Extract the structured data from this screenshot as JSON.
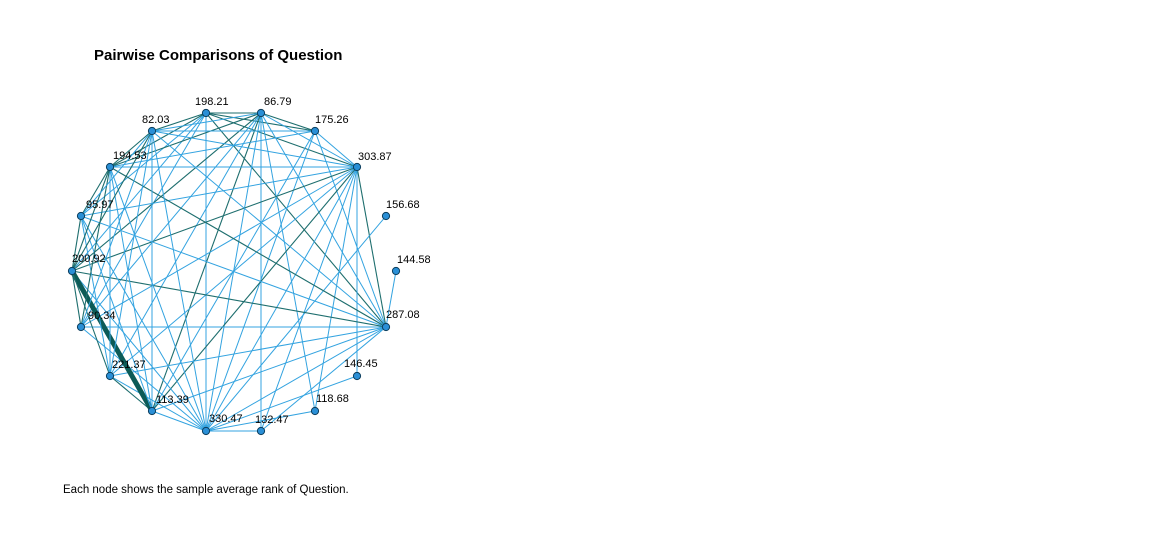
{
  "title": "Pairwise Comparisons of Question",
  "footnote": "Each node shows the sample average rank of Question.",
  "colors": {
    "background": "#ffffff",
    "node_fill": "#2a8fd6",
    "node_stroke": "#0b3d5c",
    "edge_light": "#33a3e0",
    "edge_dark": "#1e6e6e",
    "edge_highlight": "#0c5b57"
  },
  "nodes": [
    {
      "id": "n1",
      "label": "198.21"
    },
    {
      "id": "n2",
      "label": "86.79"
    },
    {
      "id": "n3",
      "label": "175.26"
    },
    {
      "id": "n4",
      "label": "303.87"
    },
    {
      "id": "n5",
      "label": "156.68"
    },
    {
      "id": "n6",
      "label": "144.58"
    },
    {
      "id": "n7",
      "label": "287.08"
    },
    {
      "id": "n8",
      "label": "146.45"
    },
    {
      "id": "n9",
      "label": "118.68"
    },
    {
      "id": "n10",
      "label": "132.47"
    },
    {
      "id": "n11",
      "label": "330.47"
    },
    {
      "id": "n12",
      "label": "113.39"
    },
    {
      "id": "n13",
      "label": "221.37"
    },
    {
      "id": "n14",
      "label": "90.34"
    },
    {
      "id": "n15",
      "label": "200.92"
    },
    {
      "id": "n16",
      "label": "95.97"
    },
    {
      "id": "n17",
      "label": "194.53"
    },
    {
      "id": "n18",
      "label": "82.03"
    }
  ],
  "edges": [
    [
      "n1",
      "n2",
      "dark"
    ],
    [
      "n1",
      "n3",
      "dark"
    ],
    [
      "n1",
      "n4",
      "dark"
    ],
    [
      "n1",
      "n7",
      "dark"
    ],
    [
      "n1",
      "n11",
      "light"
    ],
    [
      "n1",
      "n14",
      "light"
    ],
    [
      "n1",
      "n15",
      "light"
    ],
    [
      "n1",
      "n16",
      "light"
    ],
    [
      "n1",
      "n17",
      "dark"
    ],
    [
      "n1",
      "n18",
      "dark"
    ],
    [
      "n2",
      "n3",
      "dark"
    ],
    [
      "n2",
      "n4",
      "light"
    ],
    [
      "n2",
      "n7",
      "light"
    ],
    [
      "n2",
      "n9",
      "light"
    ],
    [
      "n2",
      "n10",
      "light"
    ],
    [
      "n2",
      "n11",
      "light"
    ],
    [
      "n2",
      "n12",
      "dark"
    ],
    [
      "n2",
      "n13",
      "light"
    ],
    [
      "n2",
      "n14",
      "light"
    ],
    [
      "n2",
      "n15",
      "dark"
    ],
    [
      "n2",
      "n17",
      "dark"
    ],
    [
      "n2",
      "n18",
      "light"
    ],
    [
      "n3",
      "n4",
      "light"
    ],
    [
      "n3",
      "n7",
      "light"
    ],
    [
      "n3",
      "n11",
      "light"
    ],
    [
      "n3",
      "n12",
      "light"
    ],
    [
      "n3",
      "n17",
      "light"
    ],
    [
      "n3",
      "n18",
      "light"
    ],
    [
      "n4",
      "n7",
      "dark"
    ],
    [
      "n4",
      "n8",
      "light"
    ],
    [
      "n4",
      "n9",
      "light"
    ],
    [
      "n4",
      "n10",
      "light"
    ],
    [
      "n4",
      "n11",
      "light"
    ],
    [
      "n4",
      "n12",
      "dark"
    ],
    [
      "n4",
      "n13",
      "light"
    ],
    [
      "n4",
      "n14",
      "light"
    ],
    [
      "n4",
      "n15",
      "dark"
    ],
    [
      "n4",
      "n16",
      "light"
    ],
    [
      "n4",
      "n17",
      "light"
    ],
    [
      "n4",
      "n18",
      "light"
    ],
    [
      "n5",
      "n11",
      "light"
    ],
    [
      "n6",
      "n7",
      "light"
    ],
    [
      "n7",
      "n10",
      "light"
    ],
    [
      "n7",
      "n11",
      "light"
    ],
    [
      "n7",
      "n12",
      "light"
    ],
    [
      "n7",
      "n13",
      "light"
    ],
    [
      "n7",
      "n14",
      "light"
    ],
    [
      "n7",
      "n15",
      "dark"
    ],
    [
      "n7",
      "n16",
      "light"
    ],
    [
      "n7",
      "n17",
      "dark"
    ],
    [
      "n7",
      "n18",
      "light"
    ],
    [
      "n8",
      "n11",
      "light"
    ],
    [
      "n9",
      "n11",
      "light"
    ],
    [
      "n10",
      "n11",
      "light"
    ],
    [
      "n11",
      "n12",
      "light"
    ],
    [
      "n11",
      "n13",
      "light"
    ],
    [
      "n11",
      "n14",
      "light"
    ],
    [
      "n11",
      "n15",
      "light"
    ],
    [
      "n11",
      "n16",
      "light"
    ],
    [
      "n11",
      "n17",
      "light"
    ],
    [
      "n11",
      "n18",
      "light"
    ],
    [
      "n12",
      "n13",
      "dark"
    ],
    [
      "n12",
      "n15",
      "highlight"
    ],
    [
      "n12",
      "n16",
      "light"
    ],
    [
      "n12",
      "n17",
      "light"
    ],
    [
      "n12",
      "n18",
      "light"
    ],
    [
      "n13",
      "n15",
      "dark"
    ],
    [
      "n13",
      "n16",
      "light"
    ],
    [
      "n13",
      "n17",
      "light"
    ],
    [
      "n13",
      "n18",
      "light"
    ],
    [
      "n14",
      "n15",
      "dark"
    ],
    [
      "n14",
      "n17",
      "dark"
    ],
    [
      "n14",
      "n18",
      "light"
    ],
    [
      "n15",
      "n16",
      "dark"
    ],
    [
      "n15",
      "n17",
      "dark"
    ],
    [
      "n15",
      "n18",
      "dark"
    ],
    [
      "n16",
      "n17",
      "dark"
    ],
    [
      "n16",
      "n18",
      "light"
    ],
    [
      "n17",
      "n18",
      "dark"
    ]
  ]
}
